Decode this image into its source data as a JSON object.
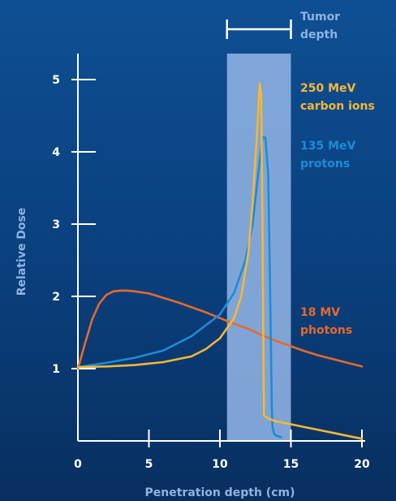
{
  "chart_data": {
    "type": "line",
    "title": "",
    "xlabel": "Penetration depth (cm)",
    "ylabel": "Relative Dose",
    "xlim": [
      0,
      20
    ],
    "ylim": [
      0,
      5.4
    ],
    "x_ticks": [
      "0",
      "5",
      "10",
      "15",
      "20"
    ],
    "y_ticks": [
      "1",
      "2",
      "3",
      "4",
      "5"
    ],
    "tumor_region": {
      "label_line1": "Tumor",
      "label_line2": "depth",
      "x_start": 10.5,
      "x_end": 15
    },
    "grid": false,
    "legend": "direct labels beside curves",
    "series": [
      {
        "name": "250 MeV carbon ions",
        "label_line1": "250 MeV",
        "label_line2": "carbon ions",
        "color": "#f7b733",
        "x": [
          0,
          2,
          4,
          6,
          8,
          9,
          10,
          11,
          11.5,
          12,
          12.3,
          12.6,
          12.8,
          12.9,
          13.0,
          13.05,
          13.1,
          13.5,
          14,
          15,
          16,
          17,
          18,
          19,
          20
        ],
        "y": [
          1.02,
          1.03,
          1.05,
          1.09,
          1.17,
          1.27,
          1.42,
          1.7,
          2.0,
          2.6,
          3.3,
          4.2,
          4.95,
          4.8,
          3.0,
          1.5,
          0.35,
          0.3,
          0.27,
          0.23,
          0.19,
          0.15,
          0.11,
          0.07,
          0.03
        ]
      },
      {
        "name": "135 MeV protons",
        "label_line1": "135 MeV",
        "label_line2": "protons",
        "color": "#1c8cd8",
        "x": [
          0,
          2,
          4,
          6,
          8,
          10,
          11,
          11.8,
          12.3,
          12.7,
          13.0,
          13.2,
          13.4,
          13.5,
          13.6,
          13.65,
          13.7,
          13.8,
          14.0,
          14.3
        ],
        "y": [
          1.02,
          1.08,
          1.15,
          1.25,
          1.45,
          1.75,
          2.05,
          2.5,
          3.0,
          3.7,
          4.2,
          4.2,
          3.7,
          2.5,
          1.2,
          0.5,
          0.2,
          0.1,
          0.07,
          0.05
        ]
      },
      {
        "name": "18 MV photons",
        "label_line1": "18 MV",
        "label_line2": "photons",
        "color": "#e8692b",
        "x": [
          0,
          0.5,
          1,
          1.5,
          2,
          2.5,
          3,
          3.5,
          4,
          5,
          6,
          7,
          8,
          9,
          10,
          11,
          12,
          13,
          14,
          15,
          16,
          17,
          18,
          19,
          20
        ],
        "y": [
          1.0,
          1.35,
          1.68,
          1.9,
          2.02,
          2.07,
          2.08,
          2.08,
          2.07,
          2.04,
          1.98,
          1.92,
          1.85,
          1.78,
          1.7,
          1.62,
          1.55,
          1.46,
          1.38,
          1.31,
          1.24,
          1.18,
          1.13,
          1.08,
          1.03
        ]
      }
    ]
  }
}
